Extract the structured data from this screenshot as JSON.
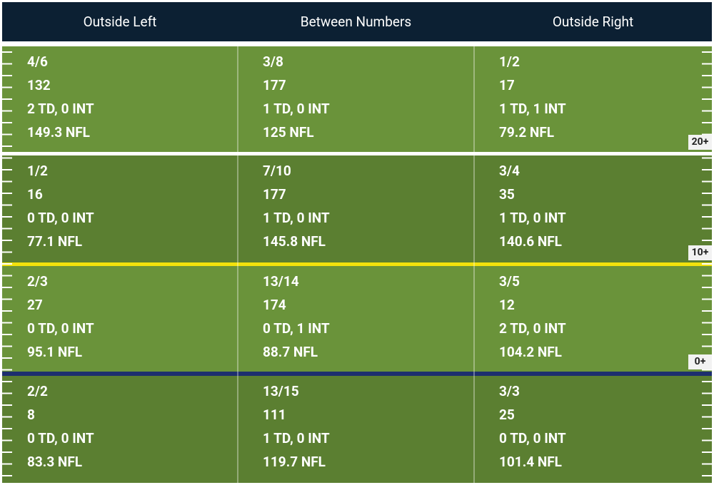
{
  "columns": [
    "Outside Left",
    "Between Numbers",
    "Outside Right"
  ],
  "rows": [
    {
      "cells": [
        [
          "4/6",
          "132",
          "2 TD, 0 INT",
          "149.3 NFL"
        ],
        [
          "3/8",
          "177",
          "1 TD, 0 INT",
          "125 NFL"
        ],
        [
          "1/2",
          "17",
          "1 TD, 1 INT",
          "79.2 NFL"
        ]
      ],
      "marker": "20+"
    },
    {
      "cells": [
        [
          "1/2",
          "16",
          "0 TD, 0 INT",
          "77.1 NFL"
        ],
        [
          "7/10",
          "177",
          "1 TD, 0 INT",
          "145.8 NFL"
        ],
        [
          "3/4",
          "35",
          "1 TD, 0 INT",
          "140.6 NFL"
        ]
      ],
      "marker": "10+"
    },
    {
      "cells": [
        [
          "2/3",
          "27",
          "0 TD, 0 INT",
          "95.1 NFL"
        ],
        [
          "13/14",
          "174",
          "0 TD, 1 INT",
          "88.7 NFL"
        ],
        [
          "3/5",
          "12",
          "2 TD, 0 INT",
          "104.2 NFL"
        ]
      ],
      "marker": "0+"
    },
    {
      "cells": [
        [
          "2/2",
          "8",
          "0 TD, 0 INT",
          "83.3 NFL"
        ],
        [
          "13/15",
          "111",
          "1 TD, 0 INT",
          "119.7 NFL"
        ],
        [
          "3/3",
          "25",
          "0 TD, 0 INT",
          "101.4 NFL"
        ]
      ]
    }
  ]
}
